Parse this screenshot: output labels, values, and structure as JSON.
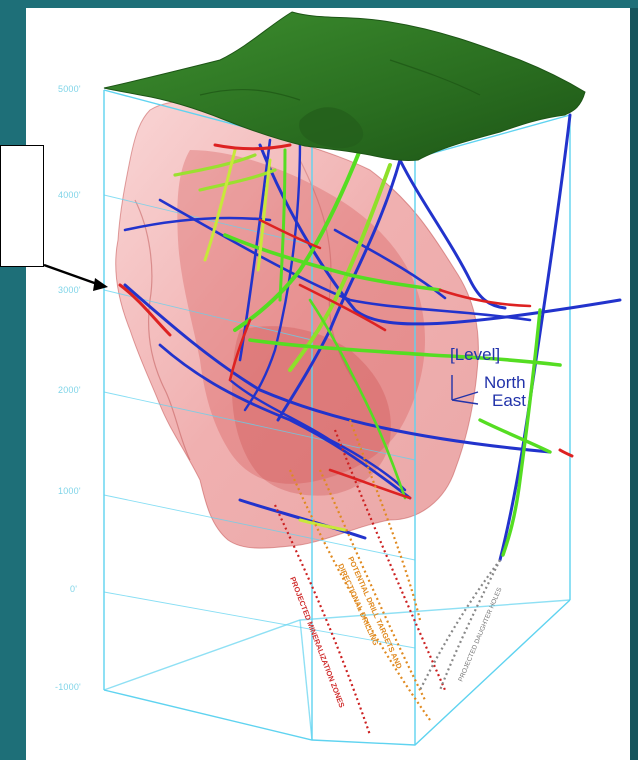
{
  "diagram": {
    "elevation_labels": [
      "5000'",
      "4000'",
      "3000'",
      "2000'",
      "1000'",
      "0'",
      "-1000'"
    ],
    "orientation": {
      "level": "[Level]",
      "north": "North",
      "east": "East"
    },
    "callouts": {
      "mineralization": "PROJECTED MINERALIZATION ZONES",
      "drill_targets_line1": "POTENTIAL DRILL TARGETS AND",
      "drill_targets_line2": "DIRECTIONAL DRILLING",
      "daughter_holes": "PROJECTED DAUGHTER HOLES"
    },
    "colors": {
      "background": "#1e6f78",
      "topography": "#2e7d24",
      "orebody": "#e06060",
      "frame": "#5fd3f0",
      "drill_blue": "#2233cc",
      "drill_green": "#55dd22",
      "drill_red": "#dd2222",
      "label_blue": "#2233aa",
      "mineralization_text": "#d03030",
      "targets_text": "#e08a20",
      "daughter_text": "#777777"
    }
  }
}
